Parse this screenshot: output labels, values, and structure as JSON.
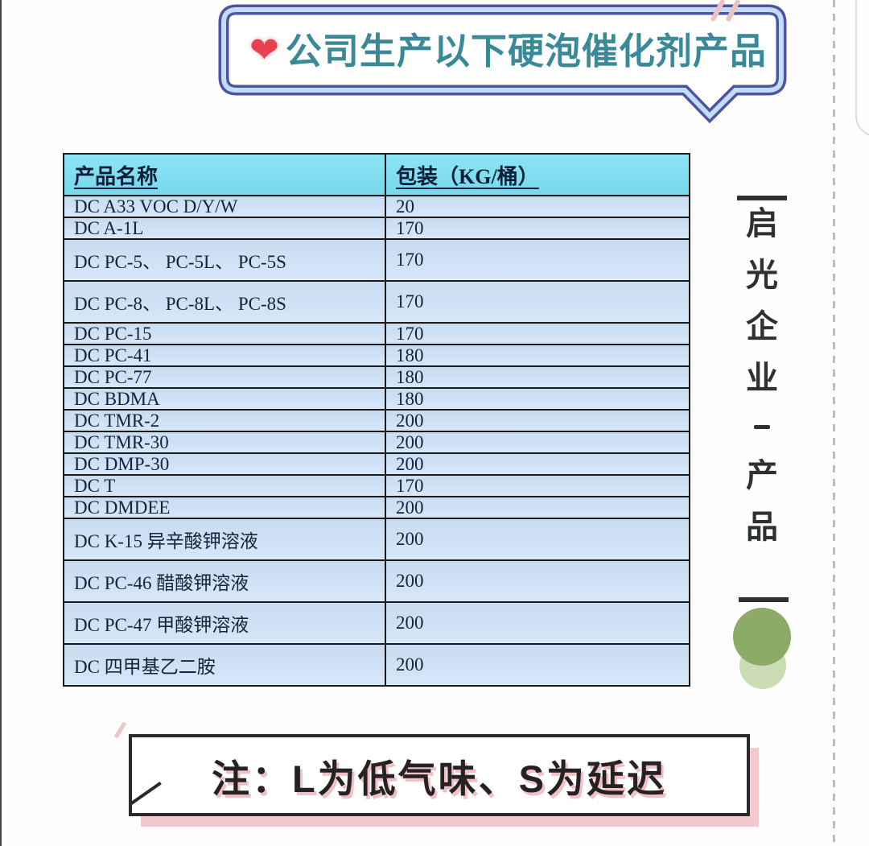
{
  "banner": {
    "heart_icon": "❤",
    "title": "公司生产以下硬泡催化剂产品"
  },
  "table": {
    "headers": [
      {
        "label": "产品名称"
      },
      {
        "label": "包装（KG/桶）"
      }
    ],
    "rows": [
      {
        "name": "DC A33 VOC D/Y/W",
        "package": "20",
        "tall": false
      },
      {
        "name": "DC A-1L",
        "package": "170",
        "tall": false
      },
      {
        "name": "DC PC-5、 PC-5L、 PC-5S",
        "package": "170",
        "tall": true
      },
      {
        "name": "DC PC-8、 PC-8L、 PC-8S",
        "package": "170",
        "tall": true
      },
      {
        "name": "DC PC-15",
        "package": "170",
        "tall": false
      },
      {
        "name": "DC PC-41",
        "package": "180",
        "tall": false
      },
      {
        "name": "DC PC-77",
        "package": "180",
        "tall": false
      },
      {
        "name": "DC BDMA",
        "package": "180",
        "tall": false
      },
      {
        "name": "DC TMR-2",
        "package": "200",
        "tall": false
      },
      {
        "name": "DC TMR-30",
        "package": "200",
        "tall": false
      },
      {
        "name": "DC DMP-30",
        "package": "200",
        "tall": false
      },
      {
        "name": "DC T",
        "package": "170",
        "tall": false
      },
      {
        "name": "DC DMDEE",
        "package": "200",
        "tall": false
      },
      {
        "name": "DC K-15 异辛酸钾溶液",
        "package": "200",
        "tall": true
      },
      {
        "name": "DC PC-46 醋酸钾溶液",
        "package": "200",
        "tall": true
      },
      {
        "name": "DC PC-47 甲酸钾溶液",
        "package": "200",
        "tall": true
      },
      {
        "name": "DC 四甲基乙二胺",
        "package": "200",
        "tall": true
      }
    ]
  },
  "sidebar": {
    "vertical_label": "启光企业 - 产品",
    "chars": [
      "启",
      "光",
      "企",
      "业",
      "-",
      "产",
      "品"
    ]
  },
  "note": {
    "text": "注：L为低气味、S为延迟"
  },
  "colors": {
    "banner_border": "#4e54a2",
    "banner_inner_border": "#c3dcf7",
    "title_text": "#3a8998",
    "heart": "#e93f4e",
    "table_header_bg": "#7fdff1",
    "table_row_bg": "#cde0f3",
    "table_border": "#1b1b1b",
    "table_text": "#15223e",
    "sidebar_text": "#2e3134",
    "circle_dark": "#8cab67",
    "circle_light": "#c9dcb3",
    "note_border": "#2a2a2a",
    "note_shadow_pink": "#f4c9cd",
    "dashed_line": "#b7bfc2"
  }
}
